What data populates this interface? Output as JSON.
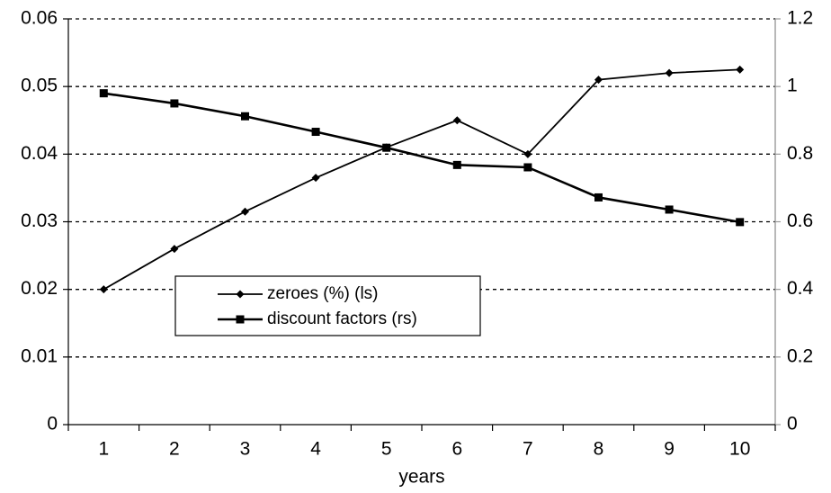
{
  "chart_data": {
    "type": "line",
    "x": [
      1,
      2,
      3,
      4,
      5,
      6,
      7,
      8,
      9,
      10
    ],
    "xlabel": "years",
    "xlim": [
      0.5,
      10.5
    ],
    "x_tick_labels": [
      "1",
      "2",
      "3",
      "4",
      "5",
      "6",
      "7",
      "8",
      "9",
      "10"
    ],
    "ylim_left": [
      0,
      0.06
    ],
    "y_left_ticks": [
      "0",
      "0.01",
      "0.02",
      "0.03",
      "0.04",
      "0.05",
      "0.06"
    ],
    "ylim_right": [
      0,
      1.2
    ],
    "y_right_ticks": [
      "0",
      "0.2",
      "0.4",
      "0.6",
      "0.8",
      "1",
      "1.2"
    ],
    "grid": "horizontal dotted",
    "legend_position": "lower-left",
    "series": [
      {
        "name": "zeroes (%) (ls)",
        "axis": "left",
        "marker": "diamond",
        "values": [
          0.02,
          0.026,
          0.0315,
          0.0365,
          0.041,
          0.045,
          0.04,
          0.051,
          0.052,
          0.0525
        ]
      },
      {
        "name": "discount factors (rs)",
        "axis": "right",
        "marker": "square",
        "values": [
          0.98,
          0.95,
          0.912,
          0.866,
          0.819,
          0.768,
          0.761,
          0.672,
          0.636,
          0.599
        ]
      }
    ]
  }
}
